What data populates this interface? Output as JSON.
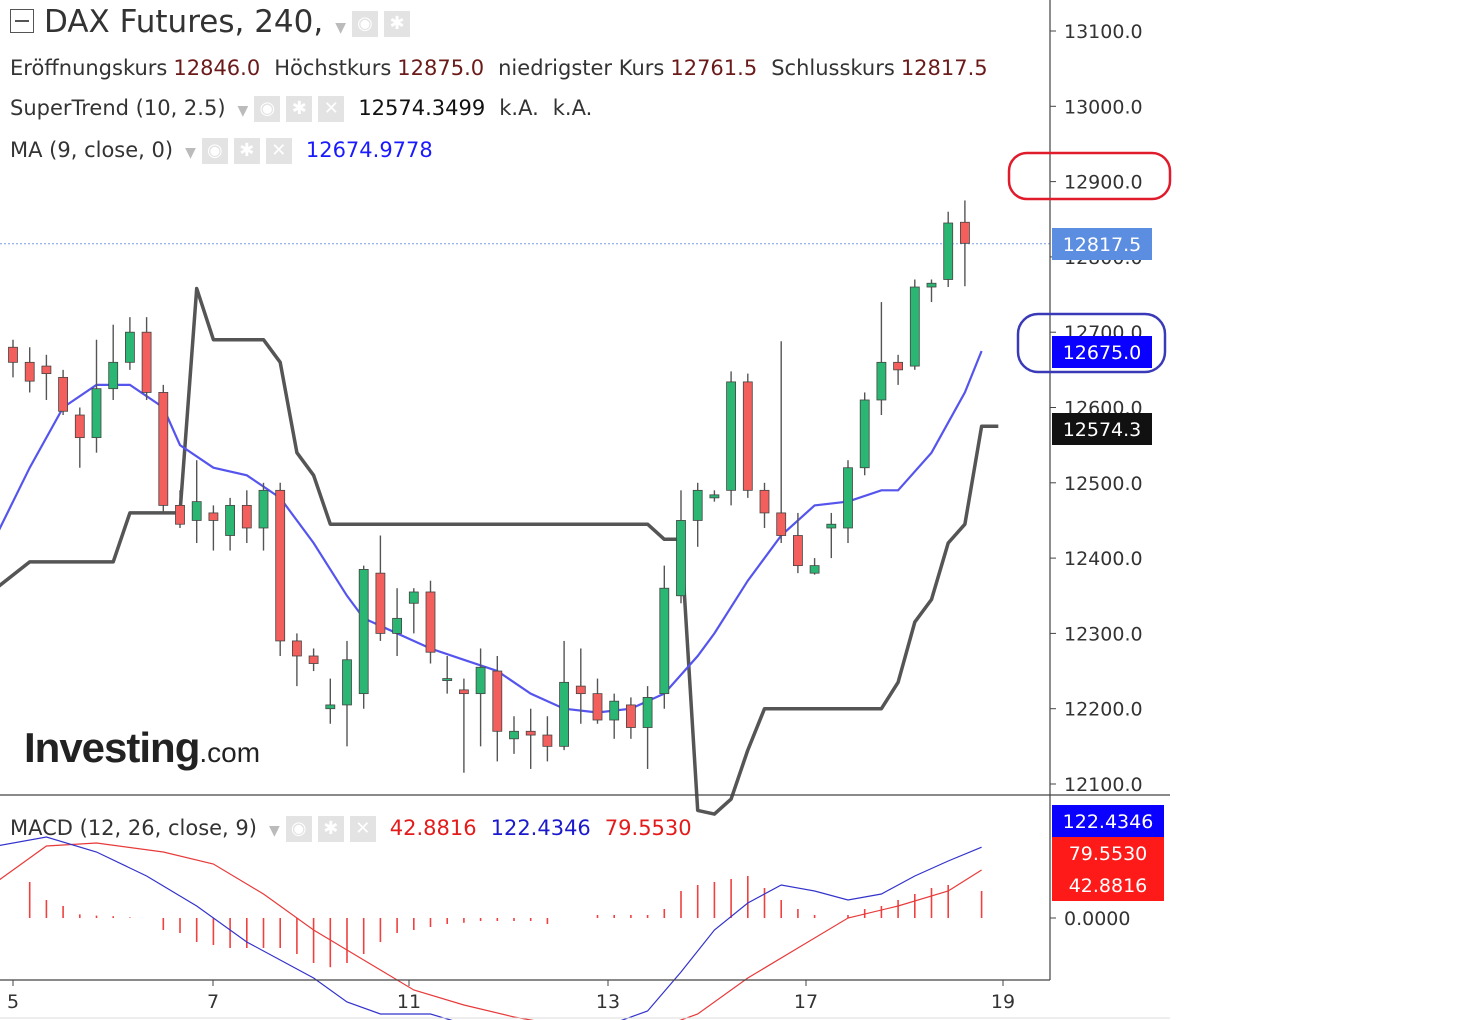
{
  "header": {
    "title": "DAX Futures, 240,",
    "ohlc": [
      {
        "label": "Eröffnungskurs",
        "value": "12846.0"
      },
      {
        "label": "Höchstkurs",
        "value": "12875.0"
      },
      {
        "label": "niedrigster Kurs",
        "value": "12761.5"
      },
      {
        "label": "Schlusskurs",
        "value": "12817.5"
      }
    ]
  },
  "indicators": {
    "supertrend": {
      "label": "SuperTrend (10, 2.5)",
      "value": "12574.3499",
      "extra1": "k.A.",
      "extra2": "k.A."
    },
    "ma": {
      "label": "MA (9, close, 0)",
      "value": "12674.9778"
    },
    "macd": {
      "label": "MACD (12, 26, close, 9)",
      "hist": "42.8816",
      "macd": "122.4346",
      "signal": "79.5530"
    }
  },
  "logo": {
    "brand": "Investing",
    "domain": ".com"
  },
  "price_tags": {
    "last": "12817.5",
    "ma": "12675.0",
    "supertrend": "12574.3",
    "macd": "122.4346",
    "signal": "79.5530",
    "hist": "42.8816"
  },
  "colors": {
    "up": "#2bb673",
    "down": "#f25f5c",
    "supertrend": "#555555",
    "ma": "#5555ee",
    "macd": "#3333cc",
    "signal": "#e83a3a",
    "tag_last": "#5b8de0",
    "tag_ma": "#0a00ff",
    "tag_st": "#111111",
    "tag_red": "#ff1a1a",
    "annotation_red": "#e01b2c",
    "annotation_blue": "#3a3ab8"
  },
  "chart_data": {
    "type": "candlestick",
    "y_ticks": [
      "13100.0",
      "13000.0",
      "12900.0",
      "12800.0",
      "12700.0",
      "12600.0",
      "12500.0",
      "12400.0",
      "12300.0",
      "12200.0",
      "12100.0"
    ],
    "ylim": [
      12084,
      13133
    ],
    "x_ticks": [
      "5",
      "7",
      "11",
      "13",
      "17",
      "19"
    ],
    "macd_ticks": [
      "0.0000"
    ],
    "candles": [
      [
        12680,
        12690,
        12640,
        12660
      ],
      [
        12660,
        12680,
        12620,
        12635
      ],
      [
        12655,
        12670,
        12610,
        12645
      ],
      [
        12640,
        12650,
        12590,
        12595
      ],
      [
        12590,
        12600,
        12520,
        12560
      ],
      [
        12560,
        12690,
        12540,
        12625
      ],
      [
        12625,
        12710,
        12610,
        12660
      ],
      [
        12660,
        12720,
        12650,
        12700
      ],
      [
        12700,
        12720,
        12610,
        12620
      ],
      [
        12620,
        12630,
        12460,
        12470
      ],
      [
        12470,
        12490,
        12440,
        12445
      ],
      [
        12450,
        12530,
        12420,
        12475
      ],
      [
        12460,
        12470,
        12410,
        12450
      ],
      [
        12430,
        12480,
        12410,
        12470
      ],
      [
        12470,
        12490,
        12420,
        12440
      ],
      [
        12440,
        12500,
        12410,
        12490
      ],
      [
        12490,
        12500,
        12270,
        12290
      ],
      [
        12290,
        12300,
        12230,
        12270
      ],
      [
        12270,
        12280,
        12250,
        12260
      ],
      [
        12200,
        12240,
        12180,
        12205
      ],
      [
        12205,
        12290,
        12150,
        12265
      ],
      [
        12220,
        12390,
        12200,
        12385
      ],
      [
        12380,
        12430,
        12290,
        12300
      ],
      [
        12300,
        12360,
        12270,
        12320
      ],
      [
        12340,
        12360,
        12300,
        12355
      ],
      [
        12355,
        12370,
        12260,
        12275
      ],
      [
        12240,
        12270,
        12220,
        12240
      ],
      [
        12225,
        12240,
        12115,
        12220
      ],
      [
        12220,
        12280,
        12150,
        12255
      ],
      [
        12250,
        12270,
        12130,
        12170
      ],
      [
        12160,
        12190,
        12140,
        12170
      ],
      [
        12170,
        12200,
        12120,
        12165
      ],
      [
        12165,
        12190,
        12130,
        12150
      ],
      [
        12150,
        12290,
        12145,
        12235
      ],
      [
        12230,
        12280,
        12180,
        12220
      ],
      [
        12220,
        12240,
        12180,
        12185
      ],
      [
        12185,
        12220,
        12160,
        12210
      ],
      [
        12205,
        12215,
        12160,
        12175
      ],
      [
        12175,
        12230,
        12120,
        12215
      ],
      [
        12220,
        12390,
        12200,
        12360
      ],
      [
        12350,
        12490,
        12340,
        12450
      ],
      [
        12450,
        12500,
        12415,
        12490
      ],
      [
        12480,
        12490,
        12475,
        12484
      ],
      [
        12490,
        12648,
        12470,
        12634
      ],
      [
        12634,
        12645,
        12480,
        12490
      ],
      [
        12490,
        12500,
        12440,
        12460
      ],
      [
        12460,
        12688,
        12420,
        12430
      ],
      [
        12430,
        12460,
        12380,
        12390
      ],
      [
        12380,
        12400,
        12378,
        12390
      ],
      [
        12440,
        12460,
        12400,
        12445
      ],
      [
        12440,
        12530,
        12420,
        12520
      ],
      [
        12520,
        12620,
        12510,
        12610
      ],
      [
        12610,
        12740,
        12590,
        12660
      ],
      [
        12660,
        12670,
        12630,
        12650
      ],
      [
        12655,
        12770,
        12650,
        12760
      ],
      [
        12760,
        12770,
        12740,
        12765
      ],
      [
        12770,
        12860,
        12760,
        12845
      ],
      [
        12846,
        12875,
        12761,
        12818
      ]
    ],
    "supertrend": [
      [
        -1,
        12360
      ],
      [
        1,
        12395
      ],
      [
        6,
        12395
      ],
      [
        7,
        12460
      ],
      [
        10,
        12460
      ],
      [
        11,
        12758
      ],
      [
        12,
        12690
      ],
      [
        15,
        12690
      ],
      [
        16,
        12660
      ],
      [
        17,
        12540
      ],
      [
        18,
        12510
      ],
      [
        19,
        12445
      ],
      [
        38,
        12445
      ],
      [
        39,
        12425
      ],
      [
        40,
        12425
      ],
      [
        41,
        12065
      ],
      [
        42,
        12060
      ],
      [
        43,
        12080
      ],
      [
        44,
        12145
      ],
      [
        45,
        12200
      ],
      [
        52,
        12200
      ],
      [
        53,
        12235
      ],
      [
        54,
        12315
      ],
      [
        55,
        12345
      ],
      [
        56,
        12420
      ],
      [
        57,
        12445
      ],
      [
        58,
        12575
      ],
      [
        59,
        12575
      ]
    ],
    "ma": [
      [
        -1,
        12430
      ],
      [
        1,
        12520
      ],
      [
        3,
        12600
      ],
      [
        5,
        12630
      ],
      [
        7,
        12630
      ],
      [
        9,
        12600
      ],
      [
        10,
        12550
      ],
      [
        12,
        12520
      ],
      [
        14,
        12510
      ],
      [
        16,
        12480
      ],
      [
        18,
        12420
      ],
      [
        20,
        12350
      ],
      [
        21,
        12320
      ],
      [
        23,
        12300
      ],
      [
        25,
        12280
      ],
      [
        27,
        12265
      ],
      [
        29,
        12250
      ],
      [
        31,
        12220
      ],
      [
        33,
        12200
      ],
      [
        35,
        12195
      ],
      [
        37,
        12200
      ],
      [
        39,
        12220
      ],
      [
        41,
        12270
      ],
      [
        42,
        12300
      ],
      [
        44,
        12370
      ],
      [
        46,
        12430
      ],
      [
        48,
        12470
      ],
      [
        50,
        12475
      ],
      [
        52,
        12490
      ],
      [
        53,
        12490
      ],
      [
        55,
        12540
      ],
      [
        57,
        12620
      ],
      [
        58,
        12675
      ]
    ],
    "macd_line": [
      [
        -1,
        120
      ],
      [
        2,
        135
      ],
      [
        5,
        110
      ],
      [
        8,
        70
      ],
      [
        11,
        20
      ],
      [
        14,
        -40
      ],
      [
        16,
        -70
      ],
      [
        18,
        -100
      ],
      [
        20,
        -140
      ],
      [
        22,
        -160
      ],
      [
        25,
        -160
      ],
      [
        28,
        -185
      ],
      [
        31,
        -200
      ],
      [
        33,
        -185
      ],
      [
        35,
        -185
      ],
      [
        38,
        -155
      ],
      [
        40,
        -90
      ],
      [
        42,
        -20
      ],
      [
        44,
        25
      ],
      [
        46,
        55
      ],
      [
        48,
        45
      ],
      [
        50,
        30
      ],
      [
        52,
        40
      ],
      [
        54,
        70
      ],
      [
        56,
        95
      ],
      [
        58,
        118
      ]
    ],
    "signal_line": [
      [
        -1,
        60
      ],
      [
        2,
        120
      ],
      [
        5,
        125
      ],
      [
        9,
        110
      ],
      [
        12,
        90
      ],
      [
        15,
        40
      ],
      [
        18,
        -20
      ],
      [
        21,
        -70
      ],
      [
        24,
        -120
      ],
      [
        27,
        -145
      ],
      [
        30,
        -165
      ],
      [
        33,
        -180
      ],
      [
        36,
        -185
      ],
      [
        39,
        -180
      ],
      [
        41,
        -160
      ],
      [
        44,
        -100
      ],
      [
        47,
        -50
      ],
      [
        50,
        0
      ],
      [
        53,
        20
      ],
      [
        56,
        45
      ],
      [
        58,
        80
      ]
    ],
    "histogram": [
      [
        -1,
        90
      ],
      [
        1,
        60
      ],
      [
        2,
        30
      ],
      [
        3,
        20
      ],
      [
        4,
        6
      ],
      [
        5,
        4
      ],
      [
        6,
        3
      ],
      [
        7,
        1
      ],
      [
        9,
        -20
      ],
      [
        10,
        -25
      ],
      [
        11,
        -40
      ],
      [
        12,
        -45
      ],
      [
        13,
        -50
      ],
      [
        14,
        -50
      ],
      [
        15,
        -50
      ],
      [
        16,
        -50
      ],
      [
        17,
        -60
      ],
      [
        18,
        -75
      ],
      [
        19,
        -82
      ],
      [
        20,
        -75
      ],
      [
        21,
        -60
      ],
      [
        22,
        -40
      ],
      [
        23,
        -25
      ],
      [
        24,
        -20
      ],
      [
        25,
        -15
      ],
      [
        26,
        -10
      ],
      [
        27,
        -8
      ],
      [
        28,
        -5
      ],
      [
        29,
        -5
      ],
      [
        30,
        -5
      ],
      [
        31,
        -5
      ],
      [
        32,
        -10
      ],
      [
        35,
        5
      ],
      [
        36,
        5
      ],
      [
        37,
        5
      ],
      [
        38,
        5
      ],
      [
        39,
        15
      ],
      [
        40,
        45
      ],
      [
        41,
        55
      ],
      [
        42,
        60
      ],
      [
        43,
        65
      ],
      [
        44,
        70
      ],
      [
        45,
        50
      ],
      [
        46,
        30
      ],
      [
        47,
        15
      ],
      [
        48,
        5
      ],
      [
        50,
        5
      ],
      [
        51,
        15
      ],
      [
        52,
        20
      ],
      [
        53,
        30
      ],
      [
        54,
        40
      ],
      [
        55,
        50
      ],
      [
        56,
        55
      ],
      [
        58,
        45
      ]
    ],
    "macd_ylim": [
      -230,
      155
    ]
  }
}
